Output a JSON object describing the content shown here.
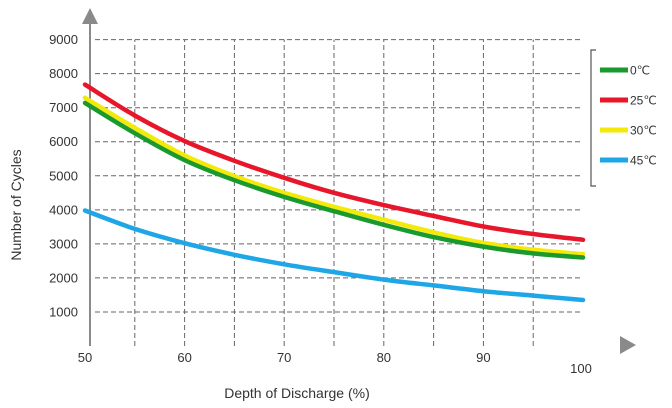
{
  "chart_data": {
    "type": "line",
    "title": "",
    "xlabel": "Depth of Discharge  (%)",
    "ylabel": "Number of Cycles",
    "xlim": [
      50,
      100
    ],
    "ylim": [
      0,
      9400
    ],
    "x_ticks": [
      50,
      60,
      70,
      80,
      90,
      100
    ],
    "y_ticks": [
      1000,
      2000,
      3000,
      4000,
      5000,
      6000,
      7000,
      8000,
      9000
    ],
    "grid": true,
    "legend_position": "right",
    "x": [
      50,
      55,
      60,
      65,
      70,
      75,
      80,
      85,
      90,
      95,
      100
    ],
    "series": [
      {
        "name": "0℃",
        "color": "#1a9a2e",
        "values": [
          7140,
          6250,
          5460,
          4870,
          4380,
          3960,
          3560,
          3200,
          2920,
          2720,
          2600
        ]
      },
      {
        "name": "25℃",
        "color": "#e8162a",
        "values": [
          7680,
          6770,
          6020,
          5440,
          4940,
          4500,
          4140,
          3820,
          3510,
          3290,
          3120
        ]
      },
      {
        "name": "30℃",
        "color": "#f3ea0a",
        "values": [
          7290,
          6410,
          5600,
          4990,
          4500,
          4090,
          3710,
          3340,
          3030,
          2830,
          2700
        ]
      },
      {
        "name": "45℃",
        "color": "#1ea6e6",
        "values": [
          3980,
          3440,
          3020,
          2680,
          2400,
          2170,
          1950,
          1780,
          1610,
          1480,
          1350
        ]
      }
    ]
  }
}
